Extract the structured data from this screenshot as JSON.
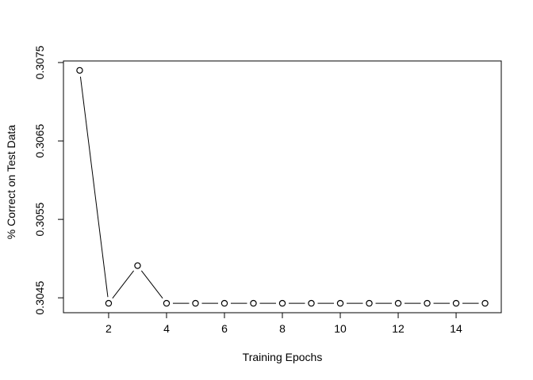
{
  "chart_data": {
    "type": "line",
    "marker": "open-circle",
    "line_style": "both (line with gaps around points)",
    "title": "",
    "xlabel": "Training Epochs",
    "ylabel": "% Correct on Test Data",
    "x": [
      1,
      2,
      3,
      4,
      5,
      6,
      7,
      8,
      9,
      10,
      11,
      12,
      13,
      14,
      15
    ],
    "y": [
      0.3074,
      0.30443,
      0.30491,
      0.30443,
      0.30443,
      0.30443,
      0.30443,
      0.30443,
      0.30443,
      0.30443,
      0.30443,
      0.30443,
      0.30443,
      0.30443,
      0.30443
    ],
    "x_ticks": [
      2,
      4,
      6,
      8,
      10,
      12,
      14
    ],
    "x_tick_labels": [
      "2",
      "4",
      "6",
      "8",
      "10",
      "12",
      "14"
    ],
    "y_ticks": [
      0.3045,
      0.3055,
      0.3065,
      0.3075
    ],
    "y_tick_labels": [
      "0.3045",
      "0.3055",
      "0.3065",
      "0.3075"
    ],
    "xlim": [
      0.44,
      15.56
    ],
    "ylim": [
      0.30431,
      0.30752
    ],
    "grid": false,
    "legend": "none",
    "colors": {
      "line": "#000000",
      "marker_stroke": "#000000",
      "marker_fill": "#ffffff",
      "background": "#ffffff"
    }
  }
}
